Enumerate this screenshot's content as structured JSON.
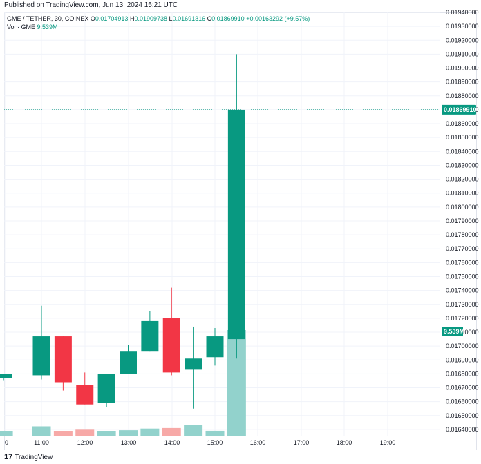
{
  "header": {
    "published": "Published on TradingView.com, Jun 13, 2024 15:21 UTC"
  },
  "legend": {
    "symbol": "GME / TETHER, 30, COINEX",
    "open_label": "O",
    "open": "0.01704913",
    "high_label": "H",
    "high": "0.01909738",
    "low_label": "L",
    "low": "0.01691316",
    "close_label": "C",
    "close": "0.01869910",
    "change": "+0.00163292 (+9.57%)",
    "volume_label": "Vol · GME",
    "volume": "9.539M"
  },
  "footer": {
    "logo_text": "17",
    "brand": "TradingView"
  },
  "colors": {
    "up": "#089981",
    "down": "#f23645",
    "volume_up": "#92d2cc",
    "volume_down": "#f7a9a7",
    "grid": "#f0f3fa",
    "price_line": "#089981"
  },
  "chart_data": {
    "type": "candlestick",
    "ylim": [
      0.01635,
      0.0194
    ],
    "y_ticks": [
      "0.01640000",
      "0.01650000",
      "0.01660000",
      "0.01670000",
      "0.01680000",
      "0.01690000",
      "0.01700000",
      "0.01710000",
      "0.01720000",
      "0.01730000",
      "0.01740000",
      "0.01750000",
      "0.01760000",
      "0.01770000",
      "0.01780000",
      "0.01790000",
      "0.01800000",
      "0.01810000",
      "0.01820000",
      "0.01830000",
      "0.01840000",
      "0.01850000",
      "0.01860000",
      "0.01870000",
      "0.01880000",
      "0.01890000",
      "0.01900000",
      "0.01910000",
      "0.01920000",
      "0.01930000",
      "0.01940000"
    ],
    "x_ticks": [
      "0",
      "11:00",
      "12:00",
      "13:00",
      "14:00",
      "15:00",
      "16:00",
      "17:00",
      "18:00",
      "19:00"
    ],
    "last_price_label": "0.01869910",
    "volume_label": "9.539M",
    "candles": [
      {
        "time": "10:00",
        "open": 0.01677,
        "high": 0.0168,
        "low": 0.01675,
        "close": 0.0168,
        "volume": 0.3
      },
      {
        "time": "10:30",
        "open": 0.01679,
        "high": 0.01729,
        "low": 0.01676,
        "close": 0.01707,
        "volume": 0.9
      },
      {
        "time": "11:00",
        "open": 0.01707,
        "high": 0.01707,
        "low": 0.01668,
        "close": 0.01674,
        "volume": 0.45
      },
      {
        "time": "11:30",
        "open": 0.01672,
        "high": 0.01681,
        "low": 0.01658,
        "close": 0.01658,
        "volume": 0.6
      },
      {
        "time": "12:00",
        "open": 0.01659,
        "high": 0.0168,
        "low": 0.01656,
        "close": 0.0168,
        "volume": 0.3
      },
      {
        "time": "12:30",
        "open": 0.0168,
        "high": 0.01701,
        "low": 0.0168,
        "close": 0.01696,
        "volume": 0.55
      },
      {
        "time": "13:00",
        "open": 0.01696,
        "high": 0.01725,
        "low": 0.01696,
        "close": 0.01718,
        "volume": 0.7
      },
      {
        "time": "13:30",
        "open": 0.0172,
        "high": 0.01742,
        "low": 0.01679,
        "close": 0.01681,
        "volume": 0.75
      },
      {
        "time": "14:00",
        "open": 0.01683,
        "high": 0.01714,
        "low": 0.01655,
        "close": 0.01691,
        "volume": 1.0
      },
      {
        "time": "14:30",
        "open": 0.01692,
        "high": 0.01713,
        "low": 0.01686,
        "close": 0.01707,
        "volume": 0.5
      },
      {
        "time": "15:00",
        "open": 0.01705,
        "high": 0.0191,
        "low": 0.01691,
        "close": 0.0187,
        "volume": 9.539
      }
    ]
  }
}
